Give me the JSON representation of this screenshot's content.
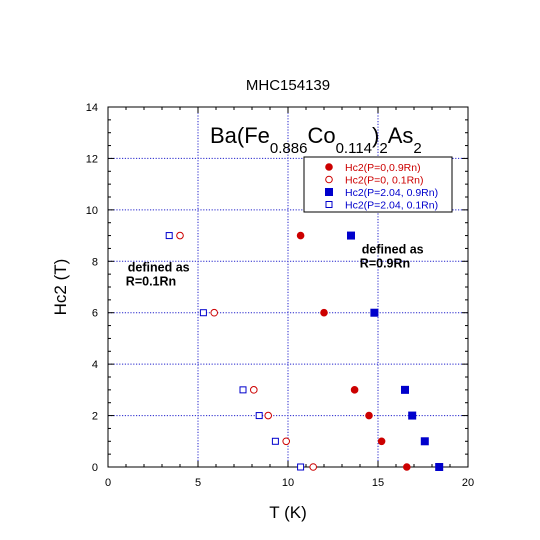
{
  "chart_data": {
    "type": "scatter",
    "title": "MHC154139",
    "formula": {
      "prefix": "Ba(Fe",
      "sub1": "0.886",
      "mid": "Co",
      "sub2": "0.114",
      "close": ")",
      "sub3": "2",
      "as": "As",
      "sub4": "2"
    },
    "xlabel": "T (K)",
    "ylabel": "Hc2 (T)",
    "xlim": [
      0,
      20
    ],
    "ylim": [
      0,
      14
    ],
    "xticks": [
      "0",
      "5",
      "10",
      "15",
      "20"
    ],
    "yticks": [
      "0",
      "2",
      "4",
      "6",
      "8",
      "10",
      "12",
      "14"
    ],
    "grid": true,
    "legend_position": "top-right",
    "series": [
      {
        "name": "Hc2(P=0,0.9Rn)",
        "color": "#cc0000",
        "marker": "filled-circle",
        "points": [
          [
            16.6,
            0
          ],
          [
            15.2,
            1
          ],
          [
            14.5,
            2
          ],
          [
            13.7,
            3
          ],
          [
            12.0,
            6
          ],
          [
            10.7,
            9
          ]
        ]
      },
      {
        "name": "Hc2(P=0, 0.1Rn)",
        "color": "#cc0000",
        "marker": "open-circle",
        "points": [
          [
            11.4,
            0
          ],
          [
            9.9,
            1
          ],
          [
            8.9,
            2
          ],
          [
            8.1,
            3
          ],
          [
            5.9,
            6
          ],
          [
            4.0,
            9
          ]
        ]
      },
      {
        "name": "Hc2(P=2.04, 0.9Rn)",
        "color": "#0000cc",
        "marker": "filled-square",
        "points": [
          [
            18.4,
            0
          ],
          [
            17.6,
            1
          ],
          [
            16.9,
            2
          ],
          [
            16.5,
            3
          ],
          [
            14.8,
            6
          ],
          [
            13.5,
            9
          ]
        ]
      },
      {
        "name": "Hc2(P=2.04, 0.1Rn)",
        "color": "#0000cc",
        "marker": "open-square",
        "points": [
          [
            10.7,
            0
          ],
          [
            9.3,
            1
          ],
          [
            8.4,
            2
          ],
          [
            7.5,
            3
          ],
          [
            5.3,
            6
          ],
          [
            3.4,
            9
          ]
        ]
      }
    ],
    "annotations": [
      {
        "lines": [
          "defined as",
          "R=0.1Rn"
        ],
        "x": 1.1,
        "y": 7.6
      },
      {
        "lines": [
          "defined as",
          "R=0.9Rn"
        ],
        "x": 14.1,
        "y": 8.3
      }
    ]
  }
}
